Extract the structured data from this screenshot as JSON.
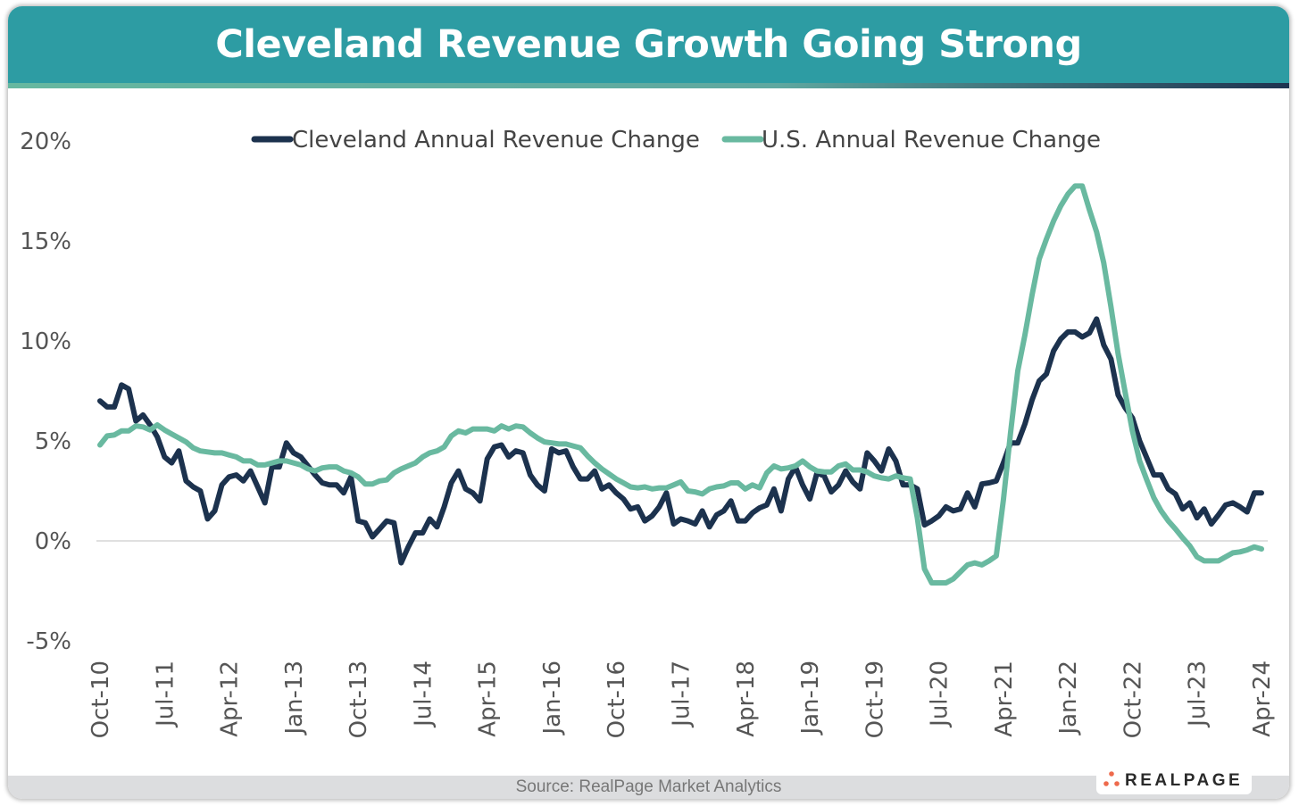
{
  "title": "Cleveland Revenue Growth Going Strong",
  "source": "Source: RealPage Market Analytics",
  "logo_text": "REALPAGE",
  "colors": {
    "header": "#2d9ca3",
    "cleveland": "#1c324e",
    "us": "#69b9a0",
    "logo_dots": "#ee6a4c"
  },
  "chart_data": {
    "type": "line",
    "title": "Cleveland Revenue Growth Going Strong",
    "xlabel": "",
    "ylabel": "",
    "x_start": "Oct-10",
    "x_end": "Apr-24",
    "x_frequency": "monthly",
    "x_tick_labels": [
      "Oct-10",
      "Jul-11",
      "Apr-12",
      "Jan-13",
      "Oct-13",
      "Jul-14",
      "Apr-15",
      "Jan-16",
      "Oct-16",
      "Jul-17",
      "Apr-18",
      "Jan-19",
      "Oct-19",
      "Jul-20",
      "Apr-21",
      "Jan-22",
      "Oct-22",
      "Jul-23",
      "Apr-24"
    ],
    "y_tick_labels": [
      "-5%",
      "0%",
      "5%",
      "10%",
      "15%",
      "20%"
    ],
    "y_ticks": [
      -5,
      0,
      5,
      10,
      15,
      20
    ],
    "ylim": [
      -5,
      20
    ],
    "grid": "zero line only",
    "legend": "top",
    "series": [
      {
        "name": "Cleveland Annual Revenue Change",
        "color": "#1c324e",
        "values": [
          7.0,
          6.7,
          6.7,
          7.8,
          7.6,
          6.0,
          6.3,
          5.8,
          5.2,
          4.2,
          3.9,
          4.5,
          3.0,
          2.7,
          2.5,
          1.1,
          1.5,
          2.8,
          3.2,
          3.3,
          3.0,
          3.5,
          2.7,
          1.9,
          3.7,
          3.7,
          4.9,
          4.4,
          4.2,
          3.75,
          3.3,
          2.9,
          2.8,
          2.8,
          2.4,
          3.2,
          1.0,
          0.9,
          0.2,
          0.6,
          1.0,
          0.9,
          -1.1,
          -0.3,
          0.4,
          0.4,
          1.1,
          0.7,
          1.7,
          2.9,
          3.5,
          2.6,
          2.4,
          2.0,
          4.1,
          4.7,
          4.8,
          4.2,
          4.5,
          4.4,
          3.3,
          2.8,
          2.5,
          4.6,
          4.4,
          4.5,
          3.7,
          3.1,
          3.1,
          3.5,
          2.6,
          2.8,
          2.4,
          2.1,
          1.6,
          1.7,
          1.0,
          1.25,
          1.7,
          2.4,
          0.85,
          1.1,
          1.0,
          0.85,
          1.5,
          0.7,
          1.3,
          1.5,
          2.0,
          1.0,
          1.0,
          1.4,
          1.65,
          1.8,
          2.6,
          1.5,
          3.1,
          3.7,
          2.8,
          2.1,
          3.4,
          3.25,
          2.45,
          2.8,
          3.5,
          2.95,
          2.6,
          4.4,
          4.0,
          3.5,
          4.6,
          4.0,
          2.8,
          2.8,
          2.6,
          0.8,
          1.0,
          1.25,
          1.7,
          1.5,
          1.6,
          2.4,
          1.7,
          2.85,
          2.9,
          3.0,
          3.9,
          4.9,
          4.9,
          5.85,
          7.05,
          8.0,
          8.35,
          9.5,
          10.1,
          10.45,
          10.45,
          10.2,
          10.4,
          11.1,
          9.8,
          9.1,
          7.3,
          6.65,
          6.15,
          5.0,
          4.15,
          3.3,
          3.3,
          2.6,
          2.35,
          1.6,
          1.9,
          1.15,
          1.6,
          0.85,
          1.3,
          1.8,
          1.9,
          1.7,
          1.45,
          2.4,
          2.4
        ]
      },
      {
        "name": "U.S. Annual Revenue Change",
        "color": "#69b9a0",
        "values": [
          4.8,
          5.25,
          5.3,
          5.5,
          5.5,
          5.75,
          5.7,
          5.55,
          5.8,
          5.55,
          5.35,
          5.15,
          4.95,
          4.65,
          4.5,
          4.45,
          4.4,
          4.4,
          4.3,
          4.2,
          4.0,
          4.0,
          3.8,
          3.8,
          3.9,
          4.0,
          4.0,
          3.9,
          3.8,
          3.6,
          3.5,
          3.65,
          3.7,
          3.7,
          3.5,
          3.4,
          3.2,
          2.85,
          2.85,
          3.0,
          3.05,
          3.4,
          3.6,
          3.75,
          3.9,
          4.2,
          4.4,
          4.5,
          4.7,
          5.25,
          5.5,
          5.4,
          5.6,
          5.6,
          5.6,
          5.5,
          5.75,
          5.6,
          5.75,
          5.7,
          5.4,
          5.15,
          4.95,
          4.9,
          4.85,
          4.85,
          4.75,
          4.65,
          4.25,
          3.9,
          3.6,
          3.35,
          3.1,
          2.9,
          2.7,
          2.65,
          2.7,
          2.6,
          2.65,
          2.65,
          2.8,
          2.95,
          2.5,
          2.45,
          2.35,
          2.6,
          2.7,
          2.75,
          2.9,
          2.9,
          2.6,
          2.8,
          2.65,
          3.4,
          3.75,
          3.6,
          3.65,
          3.75,
          4.0,
          3.7,
          3.5,
          3.45,
          3.45,
          3.75,
          3.85,
          3.55,
          3.55,
          3.45,
          3.25,
          3.15,
          3.1,
          3.25,
          3.15,
          3.1,
          1.15,
          -1.4,
          -2.1,
          -2.1,
          -2.1,
          -1.9,
          -1.55,
          -1.2,
          -1.1,
          -1.2,
          -1.0,
          -0.75,
          2.05,
          5.4,
          8.5,
          10.3,
          12.3,
          14.1,
          15.1,
          16.0,
          16.75,
          17.35,
          17.75,
          17.75,
          16.55,
          15.45,
          13.9,
          11.7,
          9.35,
          7.4,
          5.5,
          4.0,
          3.05,
          2.15,
          1.5,
          1.0,
          0.6,
          0.15,
          -0.25,
          -0.8,
          -1.0,
          -1.0,
          -1.0,
          -0.8,
          -0.6,
          -0.55,
          -0.45,
          -0.3,
          -0.4
        ]
      }
    ]
  }
}
